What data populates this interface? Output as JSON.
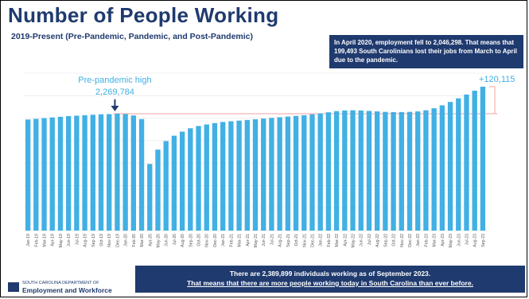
{
  "title": "Number of People Working",
  "subtitle": "2019-Present (Pre-Pandemic, Pandemic, and Post-Pandemic)",
  "callout_top": "In April 2020, employment fell to 2,046,298. That means that 199,493 South Carolinians lost their jobs from March to April due to the pandemic.",
  "annotations": {
    "pre_pandemic_label": "Pre-pandemic high",
    "pre_pandemic_value": "2,269,784",
    "increase_label": "+120,115"
  },
  "bottom_box": {
    "line1": "There are 2,389,899 individuals working as of September 2023.",
    "line2": "That means that there are more people working today in South Carolina than ever before."
  },
  "logo": {
    "line1": "SOUTH CAROLINA DEPARTMENT OF",
    "line2": "Employment and Workforce"
  },
  "colors": {
    "bar": "#41b0e4",
    "title": "#1f3a6e",
    "annotation_text": "#41b0e4",
    "reference_line": "#f2a0a0",
    "box_bg": "#1f3a6e"
  },
  "chart_data": {
    "type": "bar",
    "categories": [
      "Jan-19",
      "Feb-19",
      "Mar-19",
      "Apr-19",
      "May-19",
      "Jun-19",
      "Jul-19",
      "Aug-19",
      "Sep-19",
      "Oct-19",
      "Nov-19",
      "Dec-19",
      "Jan-20",
      "Feb-20",
      "Mar-20",
      "Apr-20",
      "May-20",
      "Jun-20",
      "Jul-20",
      "Aug-20",
      "Sep-20",
      "Oct-20",
      "Nov-20",
      "Dec-20",
      "Jan-21",
      "Feb-21",
      "Mar-21",
      "Apr-21",
      "May-21",
      "Jun-21",
      "Jul-21",
      "Aug-21",
      "Sep-21",
      "Oct-21",
      "Nov-21",
      "Dec-21",
      "Jan-22",
      "Feb-22",
      "Mar-22",
      "Apr-22",
      "May-22",
      "Jun-22",
      "Jul-22",
      "Aug-22",
      "Sep-22",
      "Oct-22",
      "Nov-22",
      "Dec-22",
      "Jan-23",
      "Feb-23",
      "Mar-23",
      "Apr-23",
      "May-23",
      "Jun-23",
      "Jul-23",
      "Aug-23",
      "Sep-23"
    ],
    "values": [
      2244000,
      2247000,
      2250000,
      2253000,
      2256000,
      2259000,
      2261000,
      2263000,
      2265000,
      2267000,
      2268000,
      2269784,
      2268000,
      2262000,
      2245791,
      2046298,
      2110000,
      2148000,
      2172000,
      2190000,
      2205000,
      2215000,
      2222000,
      2228000,
      2233000,
      2236000,
      2239000,
      2242000,
      2245000,
      2248000,
      2251000,
      2254000,
      2257000,
      2260000,
      2263000,
      2267000,
      2271000,
      2276000,
      2281000,
      2284000,
      2285000,
      2284000,
      2282000,
      2280000,
      2278000,
      2277000,
      2277000,
      2278000,
      2280000,
      2285000,
      2294000,
      2307000,
      2322000,
      2338000,
      2355000,
      2372000,
      2389899
    ],
    "ylim": [
      1750000,
      2450000
    ],
    "reference_value": 2269784,
    "grid": true,
    "legend": "none"
  }
}
